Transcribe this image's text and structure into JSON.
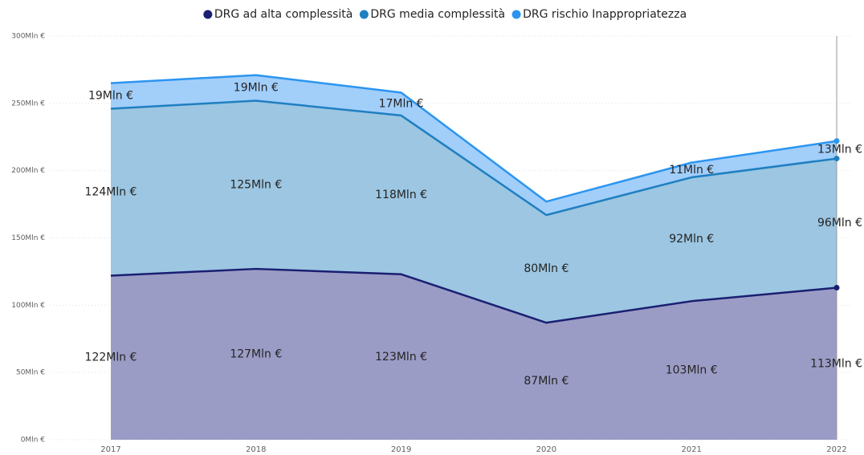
{
  "chart_data": {
    "type": "stacked_area",
    "categories": [
      "2017",
      "2018",
      "2019",
      "2020",
      "2021",
      "2022"
    ],
    "series": [
      {
        "name": "DRG ad alta complessità",
        "color": "#1a1f71",
        "fill": "#9b9cc6",
        "values": [
          122,
          127,
          123,
          87,
          103,
          113
        ],
        "value_labels": [
          "122Mln €",
          "127Mln €",
          "123Mln €",
          "87Mln €",
          "103Mln €",
          "113Mln €"
        ]
      },
      {
        "name": "DRG media complessità",
        "color": "#1f7fc0",
        "fill": "#9cc6e2",
        "values": [
          124,
          125,
          118,
          80,
          92,
          96
        ],
        "value_labels": [
          "124Mln €",
          "125Mln €",
          "118Mln €",
          "80Mln €",
          "92Mln €",
          "96Mln €"
        ]
      },
      {
        "name": "DRG rischio Inappropriatezza",
        "color": "#2b95f0",
        "fill": "#a2cefa",
        "values": [
          19,
          19,
          17,
          10,
          11,
          13
        ],
        "value_labels": [
          "19Mln €",
          "19Mln €",
          "17Mln €",
          null,
          "11Mln €",
          "13Mln €"
        ]
      }
    ],
    "ylim": [
      0,
      300
    ],
    "yticks": [
      {
        "value": 0,
        "label": "0Mln €"
      },
      {
        "value": 50,
        "label": "50Mln €"
      },
      {
        "value": 100,
        "label": "100Mln €"
      },
      {
        "value": 150,
        "label": "150Mln €"
      },
      {
        "value": 200,
        "label": "200Mln €"
      },
      {
        "value": 250,
        "label": "250Mln €"
      },
      {
        "value": 300,
        "label": "300Mln €"
      }
    ],
    "grid": true,
    "legend": "top"
  }
}
